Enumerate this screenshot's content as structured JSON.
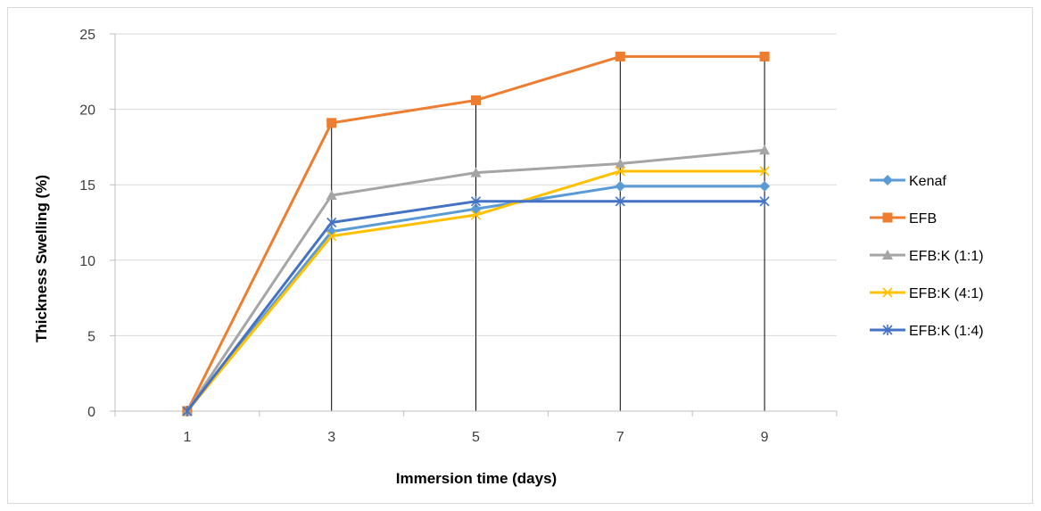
{
  "chart_data": {
    "type": "line",
    "x": [
      1,
      3,
      5,
      7,
      9
    ],
    "xlabel": "Immersion time (days)",
    "ylabel": "Thickness Swelling (%)",
    "ylim": [
      0,
      25
    ],
    "yticks": [
      0,
      5,
      10,
      15,
      20,
      25
    ],
    "grid": true,
    "drop_lines": true,
    "legend_position": "right",
    "series": [
      {
        "name": "Kenaf",
        "values": [
          0,
          11.9,
          13.4,
          14.9,
          14.9
        ],
        "color": "#5b9bd5",
        "marker": "diamond"
      },
      {
        "name": "EFB",
        "values": [
          0,
          19.1,
          20.6,
          23.5,
          23.5
        ],
        "color": "#ed7d31",
        "marker": "square"
      },
      {
        "name": "EFB:K (1:1)",
        "values": [
          0,
          14.3,
          15.8,
          16.4,
          17.3
        ],
        "color": "#a5a5a5",
        "marker": "triangle"
      },
      {
        "name": "EFB:K (4:1)",
        "values": [
          0,
          11.6,
          13.0,
          15.9,
          15.9
        ],
        "color": "#ffc000",
        "marker": "x"
      },
      {
        "name": "EFB:K (1:4)",
        "values": [
          0,
          12.5,
          13.9,
          13.9,
          13.9
        ],
        "color": "#4472c4",
        "marker": "star"
      }
    ]
  }
}
